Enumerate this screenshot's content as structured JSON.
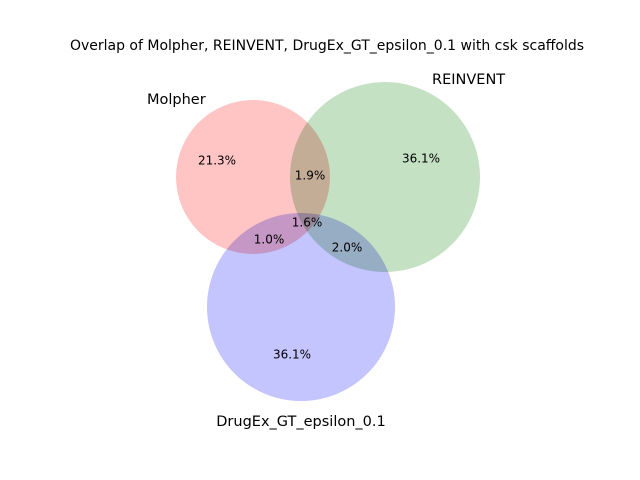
{
  "chart_data": {
    "type": "venn",
    "title": "Overlap of Molpher, REINVENT, DrugEx_GT_epsilon_0.1 with csk scaffolds",
    "sets": [
      {
        "name": "Molpher",
        "color": "#ff9999"
      },
      {
        "name": "REINVENT",
        "color": "#99cc99"
      },
      {
        "name": "DrugEx_GT_epsilon_0.1",
        "color": "#9999ff"
      }
    ],
    "regions": [
      {
        "sets": [
          "Molpher"
        ],
        "label": "21.3%",
        "value": 21.3
      },
      {
        "sets": [
          "REINVENT"
        ],
        "label": "36.1%",
        "value": 36.1
      },
      {
        "sets": [
          "DrugEx_GT_epsilon_0.1"
        ],
        "label": "36.1%",
        "value": 36.1
      },
      {
        "sets": [
          "Molpher",
          "REINVENT"
        ],
        "label": "1.9%",
        "value": 1.9
      },
      {
        "sets": [
          "Molpher",
          "DrugEx_GT_epsilon_0.1"
        ],
        "label": "1.0%",
        "value": 1.0
      },
      {
        "sets": [
          "REINVENT",
          "DrugEx_GT_epsilon_0.1"
        ],
        "label": "2.0%",
        "value": 2.0
      },
      {
        "sets": [
          "Molpher",
          "REINVENT",
          "DrugEx_GT_epsilon_0.1"
        ],
        "label": "1.6%",
        "value": 1.6
      }
    ],
    "legend": "none",
    "grid": false
  }
}
